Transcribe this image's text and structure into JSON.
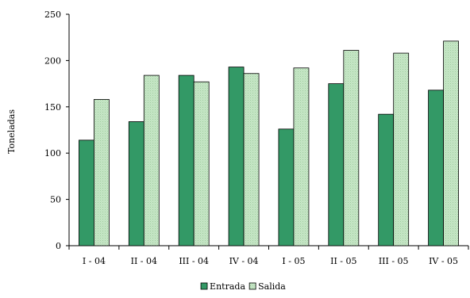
{
  "chart_data": {
    "type": "bar",
    "title": "",
    "xlabel": "",
    "ylabel": "Toneladas",
    "ylim": [
      0,
      250
    ],
    "yticks": [
      0,
      50,
      100,
      150,
      200,
      250
    ],
    "grid": false,
    "legend_position": "bottom-center",
    "categories": [
      "I - 04",
      "II - 04",
      "III - 04",
      "IV - 04",
      "I - 05",
      "II - 05",
      "III - 05",
      "IV - 05"
    ],
    "series": [
      {
        "name": "Entrada",
        "color": "#339966",
        "values": [
          114,
          134,
          184,
          193,
          126,
          175,
          142,
          168
        ]
      },
      {
        "name": "Salida",
        "color": "#c6e6c6",
        "pattern": "dotted",
        "values": [
          158,
          184,
          177,
          186,
          192,
          211,
          208,
          221
        ]
      }
    ]
  }
}
